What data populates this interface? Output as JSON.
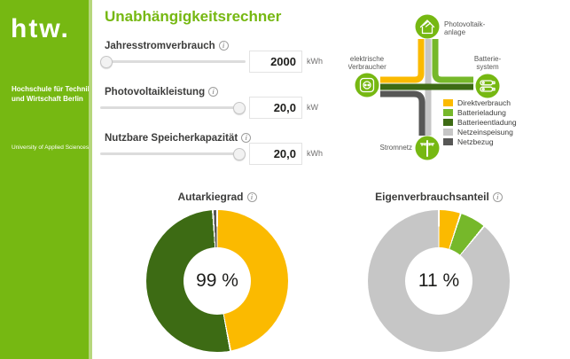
{
  "brand": {
    "logo": "htw.",
    "line1": "Hochschule für Technik",
    "line2": "und Wirtschaft Berlin",
    "line3": "University of Applied Sciences"
  },
  "page": {
    "title": "Unabhängigkeitsrechner"
  },
  "colors": {
    "brand": "#76b812",
    "brand_edge": "#b6d77c",
    "title_green": "#76b812",
    "direktverbrauch": "#fbba00",
    "batterieladung": "#76b82a",
    "batterieentladung": "#3d6b14",
    "netzeinspeisung": "#c6c6c6",
    "netzbezug": "#575756"
  },
  "sliders": [
    {
      "label": "Jahresstromverbrauch",
      "value": "2000",
      "unit": "kWh",
      "handle_pct": 4
    },
    {
      "label": "Photovoltaikleistung",
      "value": "20,0",
      "unit": "kW",
      "handle_pct": 96
    },
    {
      "label": "Nutzbare Speicherkapazität",
      "value": "20,0",
      "unit": "kWh",
      "handle_pct": 96
    }
  ],
  "diagram": {
    "nodes": {
      "pv": {
        "line1": "Photovoltaik-",
        "line2": "anlage"
      },
      "consumer": {
        "line1": "elektrische",
        "line2": "Verbraucher"
      },
      "battery": {
        "line1": "Batterie-",
        "line2": "system"
      },
      "grid": {
        "label": "Stromnetz"
      }
    },
    "legend": [
      {
        "label": "Direktverbrauch",
        "color": "direktverbrauch"
      },
      {
        "label": "Batterieladung",
        "color": "batterieladung"
      },
      {
        "label": "Batterieentladung",
        "color": "batterieentladung"
      },
      {
        "label": "Netzeinspeisung",
        "color": "netzeinspeisung"
      },
      {
        "label": "Netzbezug",
        "color": "netzbezug"
      }
    ]
  },
  "chart_data": [
    {
      "type": "pie",
      "variant": "donut",
      "title": "Autarkiegrad",
      "center_label": "99 %",
      "value_pct": 99,
      "segments": [
        {
          "label": "Direktverbrauch",
          "color": "direktverbrauch",
          "value": 47
        },
        {
          "label": "Batterieentladung",
          "color": "batterieentladung",
          "value": 52
        },
        {
          "label": "Netzbezug",
          "color": "netzbezug",
          "value": 1
        }
      ]
    },
    {
      "type": "pie",
      "variant": "donut",
      "title": "Eigenverbrauchsanteil",
      "center_label": "11 %",
      "value_pct": 11,
      "segments": [
        {
          "label": "Direktverbrauch",
          "color": "direktverbrauch",
          "value": 5
        },
        {
          "label": "Batterieladung",
          "color": "batterieladung",
          "value": 6
        },
        {
          "label": "Netzeinspeisung",
          "color": "netzeinspeisung",
          "value": 89
        }
      ]
    }
  ]
}
